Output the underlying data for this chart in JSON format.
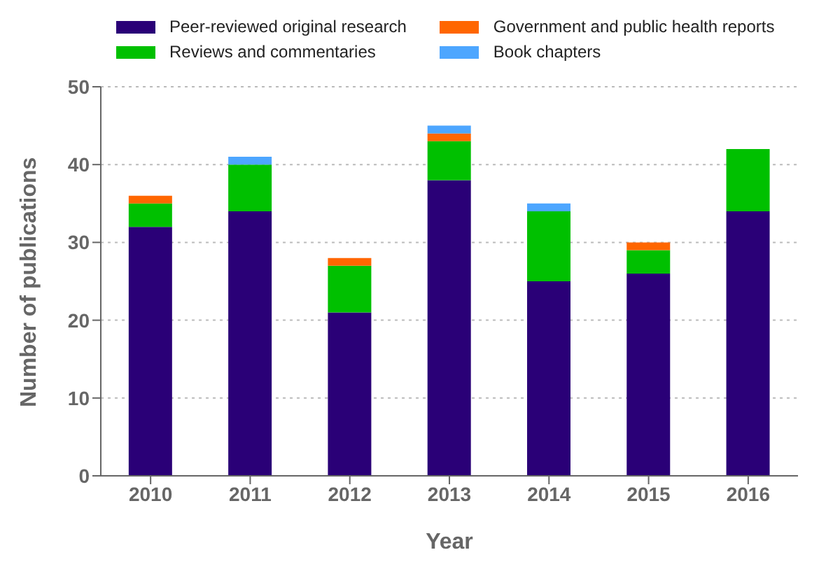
{
  "chart_data": {
    "type": "bar",
    "stacked": true,
    "xlabel": "Year",
    "ylabel": "Number of publications",
    "categories": [
      "2010",
      "2011",
      "2012",
      "2013",
      "2014",
      "2015",
      "2016"
    ],
    "series": [
      {
        "name": "Peer-reviewed original research",
        "color": "#2a0077",
        "values": [
          32,
          34,
          21,
          38,
          25,
          26,
          34
        ]
      },
      {
        "name": "Reviews and commentaries",
        "color": "#00c000",
        "values": [
          3,
          6,
          6,
          5,
          9,
          3,
          8
        ]
      },
      {
        "name": "Government and public health reports",
        "color": "#ff6600",
        "values": [
          1,
          0,
          1,
          1,
          0,
          1,
          0
        ]
      },
      {
        "name": "Book chapters",
        "color": "#4da6ff",
        "values": [
          0,
          1,
          0,
          1,
          1,
          0,
          0
        ]
      }
    ],
    "ylim": [
      0,
      50
    ],
    "yticks": [
      0,
      10,
      20,
      30,
      40,
      50
    ],
    "grid": "y",
    "legend": "top"
  }
}
